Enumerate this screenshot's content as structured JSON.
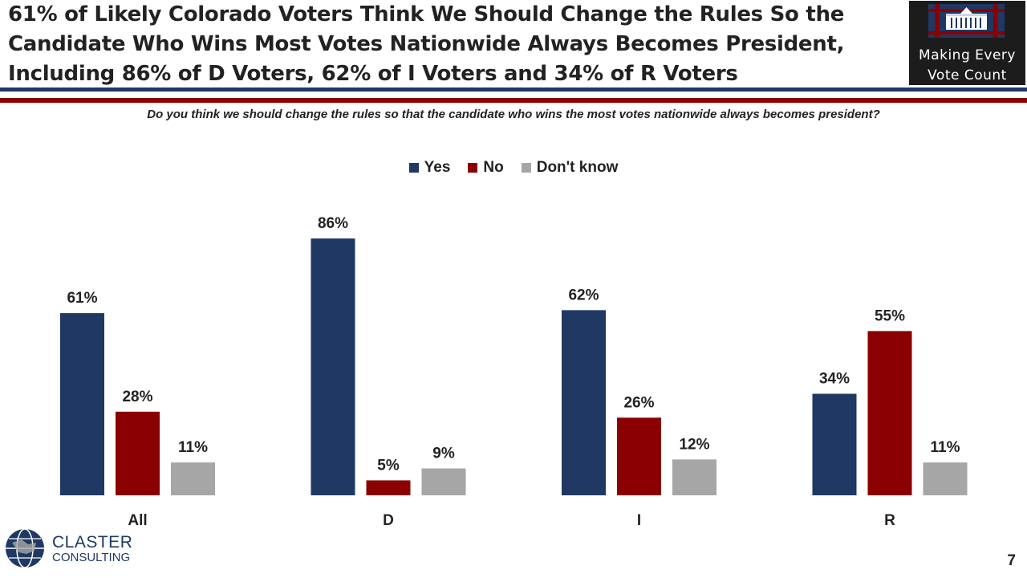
{
  "title_lines": [
    "61% of Likely Colorado Voters Think We Should Change the Rules So the",
    "Candidate Who Wins Most Votes Nationwide Always Becomes President,",
    "Including 86% of D Voters, 62% of I Voters and 34% of R Voters"
  ],
  "logo": {
    "line1": "Making Every",
    "line2": "Vote Count"
  },
  "question": "Do you think we should change the rules so that the candidate who wins the most votes nationwide always becomes president?",
  "colors": {
    "yes": "#1f3864",
    "no": "#8b0000",
    "dont_know": "#a6a6a6",
    "brand_blue": "#1f3864",
    "brand_red": "#8b0000"
  },
  "chart_data": {
    "type": "bar",
    "categories": [
      "All",
      "D",
      "I",
      "R"
    ],
    "series": [
      {
        "name": "Yes",
        "values": [
          61,
          86,
          62,
          34
        ],
        "labels": [
          "61%",
          "86%",
          "62%",
          "34%"
        ]
      },
      {
        "name": "No",
        "values": [
          28,
          5,
          26,
          55
        ],
        "labels": [
          "28%",
          "5%",
          "26%",
          "55%"
        ]
      },
      {
        "name": "Don't know",
        "values": [
          11,
          9,
          12,
          11
        ],
        "labels": [
          "11%",
          "9%",
          "12%",
          "11%"
        ]
      }
    ],
    "ylim": [
      0,
      100
    ],
    "grid": false,
    "legend_position": "top-center"
  },
  "footer": {
    "company_line1": "CLASTER",
    "company_line2": "CONSULTING",
    "page_number": "7"
  }
}
